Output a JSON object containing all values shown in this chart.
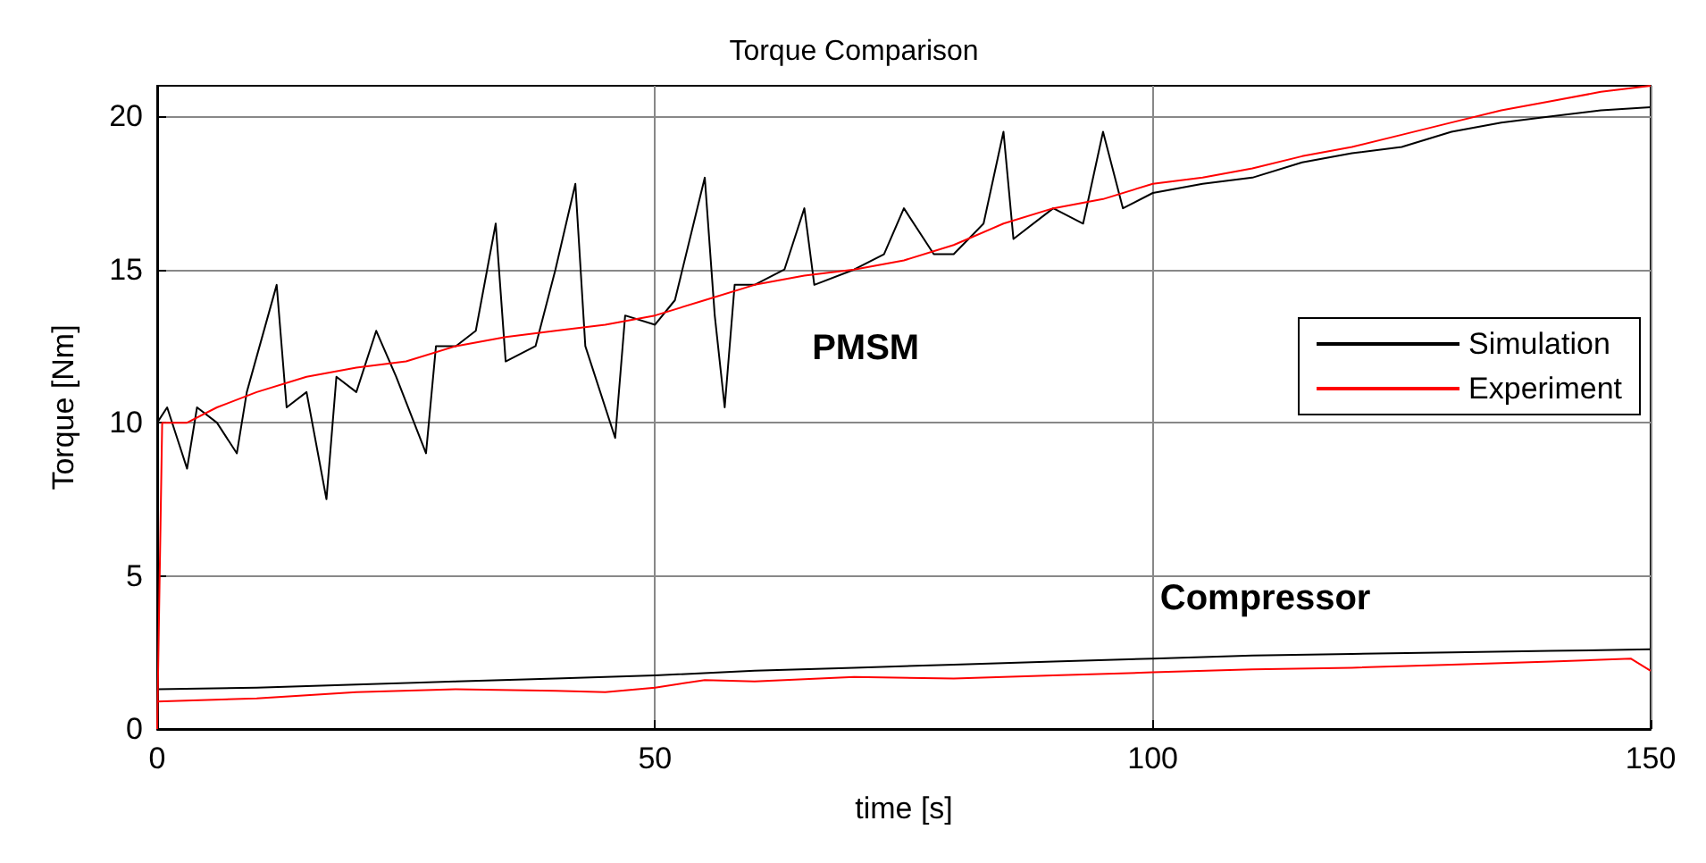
{
  "chart_data": {
    "type": "line",
    "title": "Torque Comparison",
    "xlabel": "time [s]",
    "ylabel": "Torque [Nm]",
    "xlim": [
      0,
      150
    ],
    "xticks": [
      0,
      50,
      100,
      150
    ],
    "ylim": [
      0,
      21
    ],
    "yticks": [
      0,
      5,
      10,
      15,
      20
    ],
    "grid": true,
    "legend": "right",
    "marker": "none",
    "line_style": "solid",
    "annotations": [
      "PMSM",
      "Compressor"
    ],
    "series": [
      {
        "name": "Simulation",
        "color": "#000000",
        "x": [
          0,
          1,
          3,
          4,
          6,
          8,
          9,
          12,
          13,
          15,
          17,
          18,
          20,
          22,
          24,
          27,
          28,
          30,
          32,
          34,
          35,
          38,
          40,
          42,
          43,
          46,
          47,
          50,
          52,
          55,
          56,
          57,
          58,
          60,
          63,
          65,
          66,
          70,
          73,
          75,
          78,
          80,
          83,
          85,
          86,
          90,
          93,
          95,
          97,
          100,
          105,
          110,
          115,
          120,
          125,
          130,
          135,
          140,
          145,
          150
        ],
        "values": [
          10,
          10.5,
          8.5,
          10.5,
          10,
          9,
          11,
          14.5,
          10.5,
          11,
          7.5,
          11.5,
          11,
          13,
          11.5,
          9,
          12.5,
          12.5,
          13,
          16.5,
          12,
          12.5,
          15,
          17.8,
          12.5,
          9.5,
          13.5,
          13.2,
          14,
          18,
          13.5,
          10.5,
          14.5,
          14.5,
          15,
          17,
          14.5,
          15,
          15.5,
          17,
          15.5,
          15.5,
          16.5,
          19.5,
          16,
          17,
          16.5,
          19.5,
          17,
          17.5,
          17.8,
          18,
          18.5,
          18.8,
          19,
          19.5,
          19.8,
          20,
          20.2,
          20.3
        ]
      },
      {
        "name": "Experiment",
        "color": "#ff0000",
        "x": [
          0,
          0.5,
          3,
          6,
          10,
          15,
          20,
          25,
          30,
          35,
          40,
          45,
          50,
          55,
          60,
          65,
          70,
          75,
          80,
          85,
          90,
          95,
          100,
          105,
          110,
          115,
          120,
          125,
          130,
          135,
          140,
          145,
          150
        ],
        "values": [
          0,
          10,
          10,
          10.5,
          11,
          11.5,
          11.8,
          12,
          12.5,
          12.8,
          13,
          13.2,
          13.5,
          14,
          14.5,
          14.8,
          15,
          15.3,
          15.8,
          16.5,
          17,
          17.3,
          17.8,
          18,
          18.3,
          18.7,
          19,
          19.4,
          19.8,
          20.2,
          20.5,
          20.8,
          21
        ]
      },
      {
        "color": "#000000",
        "x": [
          0,
          10,
          20,
          30,
          40,
          50,
          60,
          70,
          80,
          90,
          100,
          110,
          120,
          130,
          140,
          150
        ],
        "values": [
          1.3,
          1.35,
          1.45,
          1.55,
          1.65,
          1.75,
          1.9,
          2,
          2.1,
          2.2,
          2.3,
          2.4,
          2.45,
          2.5,
          2.55,
          2.6
        ]
      },
      {
        "color": "#ff0000",
        "x": [
          0,
          10,
          20,
          30,
          40,
          45,
          50,
          55,
          60,
          70,
          80,
          90,
          100,
          110,
          120,
          130,
          140,
          148,
          150
        ],
        "values": [
          0.9,
          1,
          1.2,
          1.3,
          1.25,
          1.2,
          1.35,
          1.6,
          1.55,
          1.7,
          1.65,
          1.75,
          1.85,
          1.95,
          2,
          2.1,
          2.2,
          2.3,
          1.9
        ]
      }
    ]
  }
}
